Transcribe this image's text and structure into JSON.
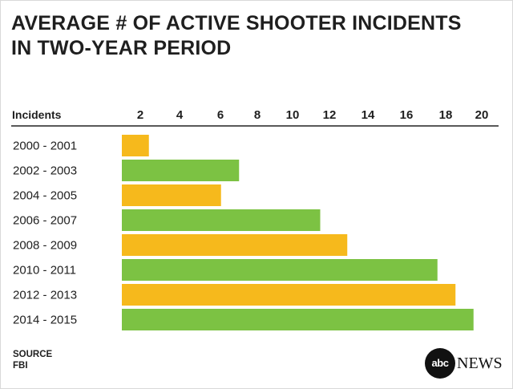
{
  "title_lines": [
    "AVERAGE # OF ACTIVE SHOOTER INCIDENTS",
    "IN TWO-YEAR PERIOD"
  ],
  "chart_data": {
    "type": "bar",
    "orientation": "horizontal",
    "title": "AVERAGE # OF ACTIVE SHOOTER INCIDENTS IN TWO-YEAR PERIOD",
    "axis_header": "Incidents",
    "xticks": [
      "2",
      "4",
      "6",
      "8",
      "10",
      "12",
      "14",
      "16",
      "18",
      "20"
    ],
    "categories": [
      "2000 - 2001",
      "2002 - 2003",
      "2004 - 2005",
      "2006 - 2007",
      "2008 - 2009",
      "2010 - 2011",
      "2012 - 2013",
      "2014 - 2015"
    ],
    "values": [
      1.5,
      6.5,
      5.5,
      11.0,
      12.5,
      17.5,
      18.5,
      19.5
    ],
    "colors": [
      "#f6b91c",
      "#7cc243",
      "#f6b91c",
      "#7cc243",
      "#f6b91c",
      "#7cc243",
      "#f6b91c",
      "#7cc243"
    ]
  },
  "source": {
    "label": "SOURCE",
    "value": "FBI"
  },
  "logo": {
    "mark": "abc",
    "text": "NEWS"
  }
}
